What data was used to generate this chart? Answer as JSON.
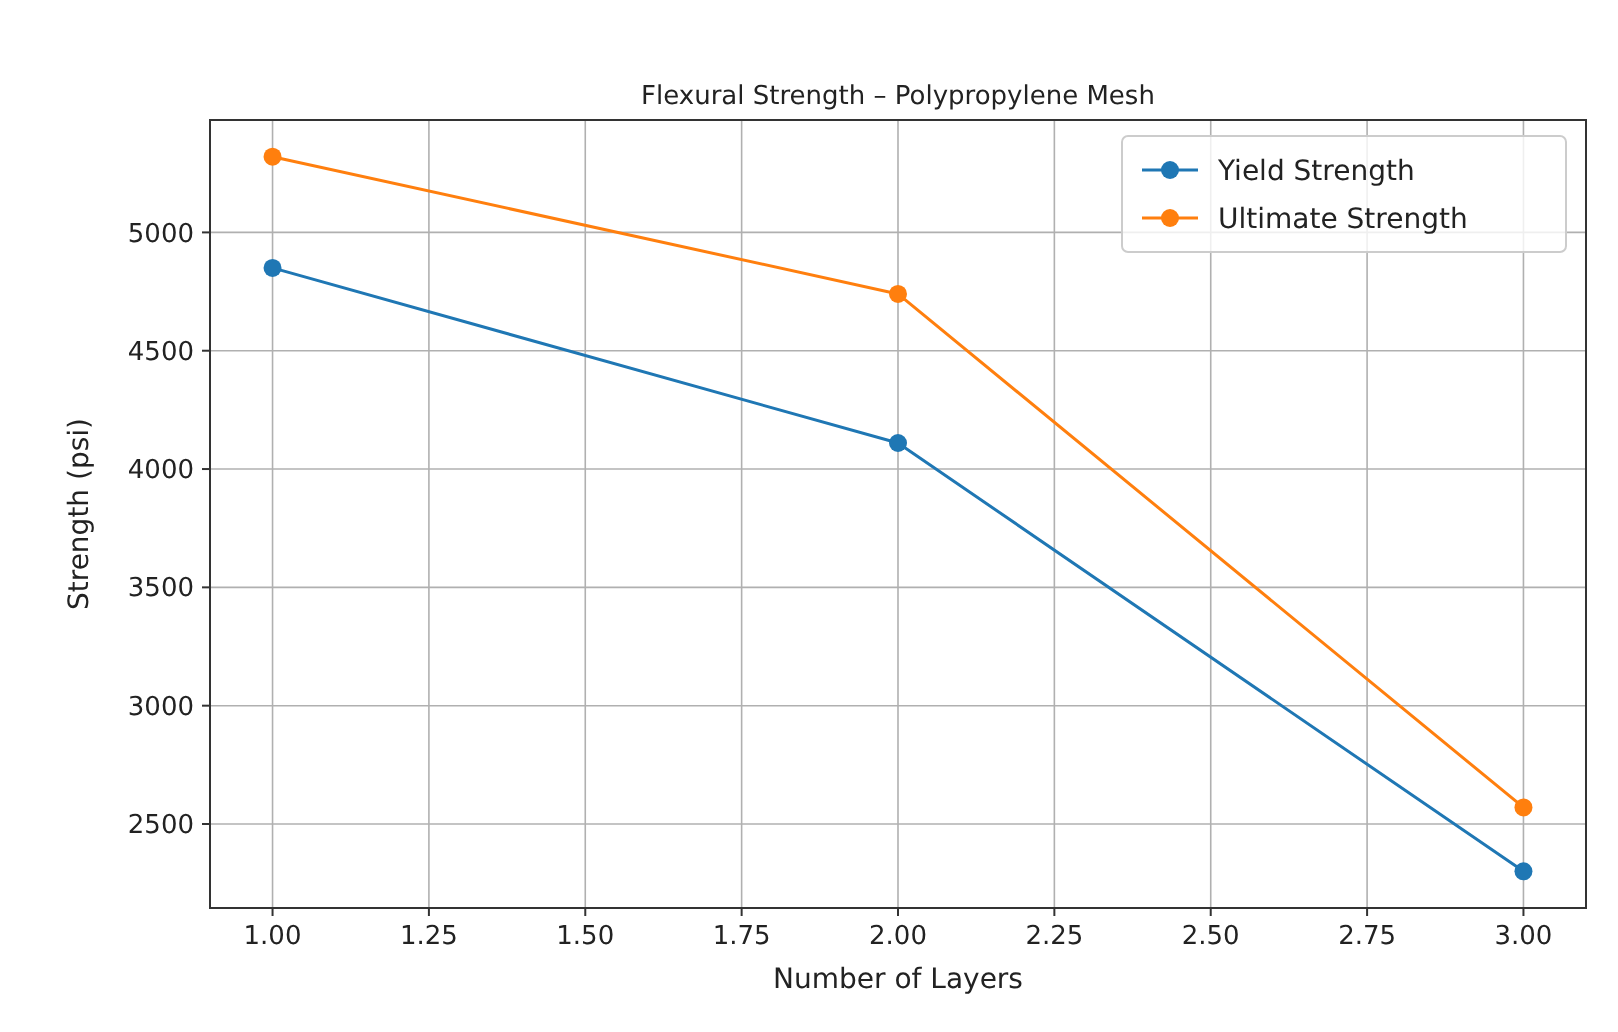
{
  "chart_data": {
    "type": "line",
    "title": "Flexural Strength – Polypropylene Mesh",
    "xlabel": "Number of Layers",
    "ylabel": "Strength (psi)",
    "x": [
      1,
      2,
      3
    ],
    "series": [
      {
        "name": "Yield Strength",
        "color": "#1f77b4",
        "values": [
          4850,
          4110,
          2300
        ]
      },
      {
        "name": "Ultimate Strength",
        "color": "#ff7f0e",
        "values": [
          5320,
          4740,
          2570
        ]
      }
    ],
    "xlim": [
      0.9,
      3.1
    ],
    "xticks": [
      {
        "value": 1,
        "label": "1.00"
      },
      {
        "value": 1.25,
        "label": "1.25"
      },
      {
        "value": 1.5,
        "label": "1.50"
      },
      {
        "value": 1.75,
        "label": "1.75"
      },
      {
        "value": 2,
        "label": "2.00"
      },
      {
        "value": 2.25,
        "label": "2.25"
      },
      {
        "value": 2.5,
        "label": "2.50"
      },
      {
        "value": 2.75,
        "label": "2.75"
      },
      {
        "value": 3,
        "label": "3.00"
      }
    ],
    "ylim": [
      2145,
      5475
    ],
    "yticks": [
      2500,
      3000,
      3500,
      4000,
      4500,
      5000
    ],
    "grid": true,
    "legend": "top right",
    "marker": "circle",
    "line_style": "solid"
  }
}
